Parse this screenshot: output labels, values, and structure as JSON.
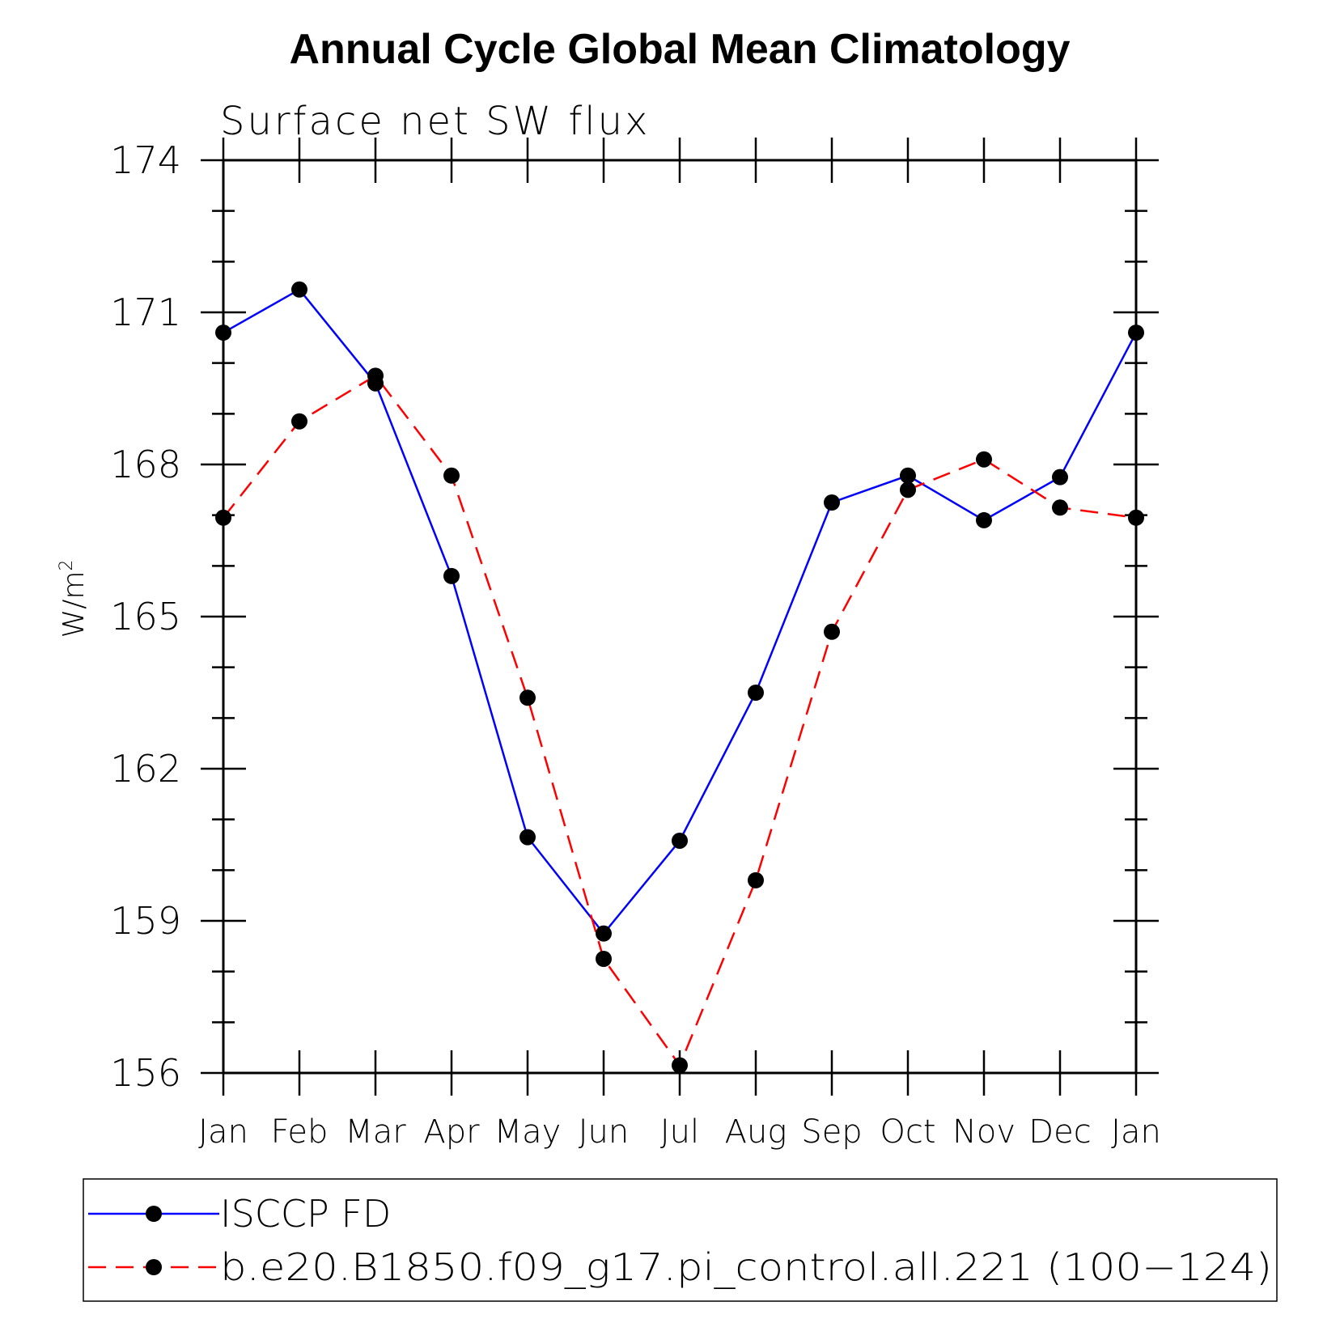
{
  "chart_data": {
    "type": "line",
    "title": "Annual Cycle Global Mean Climatology",
    "subtitle": "Surface net SW flux",
    "ylabel": "W/m",
    "ylabel_superscript": "2",
    "xlabel": "",
    "categories": [
      "Jan",
      "Feb",
      "Mar",
      "Apr",
      "May",
      "Jun",
      "Jul",
      "Aug",
      "Sep",
      "Oct",
      "Nov",
      "Dec",
      "Jan"
    ],
    "ylim": [
      156,
      174
    ],
    "yticks": [
      156,
      159,
      162,
      165,
      168,
      171,
      174
    ],
    "series": [
      {
        "name": "ISCCP FD",
        "color": "#0000ff",
        "dash": "solid",
        "marker": "filled-circle",
        "values": [
          170.6,
          171.45,
          169.6,
          165.8,
          160.65,
          158.75,
          160.58,
          163.5,
          167.25,
          167.78,
          166.9,
          167.75,
          170.6
        ]
      },
      {
        "name": "b.e20.B1850.f09_g17.pi_control.all.221 (100−124)",
        "color": "#ff0000",
        "dash": "dashed",
        "marker": "filled-circle",
        "values": [
          166.95,
          168.85,
          169.75,
          167.78,
          163.4,
          158.25,
          156.15,
          159.8,
          164.7,
          167.5,
          168.1,
          167.15,
          166.95
        ]
      }
    ],
    "legend_position": "bottom"
  }
}
